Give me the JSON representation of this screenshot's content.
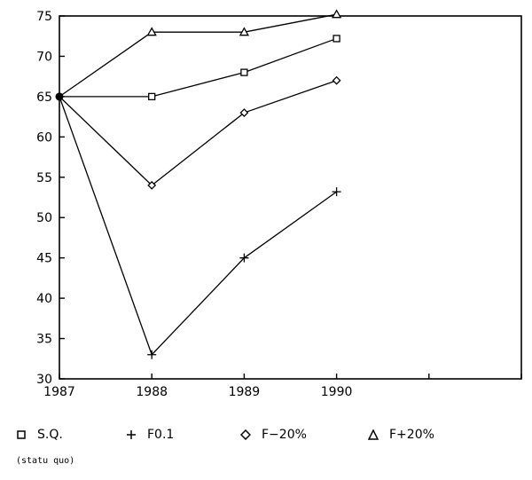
{
  "chart_data": {
    "type": "line",
    "x": [
      "1987",
      "1988",
      "1989",
      "1990"
    ],
    "xlim": [
      1987,
      1992
    ],
    "ylim": [
      30,
      75
    ],
    "yticks": [
      30,
      35,
      40,
      45,
      50,
      55,
      60,
      65,
      70,
      75
    ],
    "grid": false,
    "legend_position": "bottom",
    "series": [
      {
        "name": "S.Q.",
        "marker": "square",
        "values": [
          65,
          65,
          68,
          72.2
        ]
      },
      {
        "name": "F0.1",
        "marker": "plus",
        "values": [
          65,
          33,
          45,
          53.2
        ]
      },
      {
        "name": "F−20%",
        "marker": "diamond",
        "values": [
          65,
          54,
          63,
          67
        ]
      },
      {
        "name": "F+20%",
        "marker": "triangle",
        "values": [
          65,
          73,
          73,
          75.2
        ]
      }
    ]
  },
  "legend": {
    "items": [
      {
        "icon": "square-marker-icon",
        "label": "S.Q."
      },
      {
        "icon": "plus-marker-icon",
        "label": "F0.1"
      },
      {
        "icon": "diamond-marker-icon",
        "label": "F−20%"
      },
      {
        "icon": "triangle-marker-icon",
        "label": "F+20%"
      }
    ],
    "footnote": "(statu quo)"
  }
}
